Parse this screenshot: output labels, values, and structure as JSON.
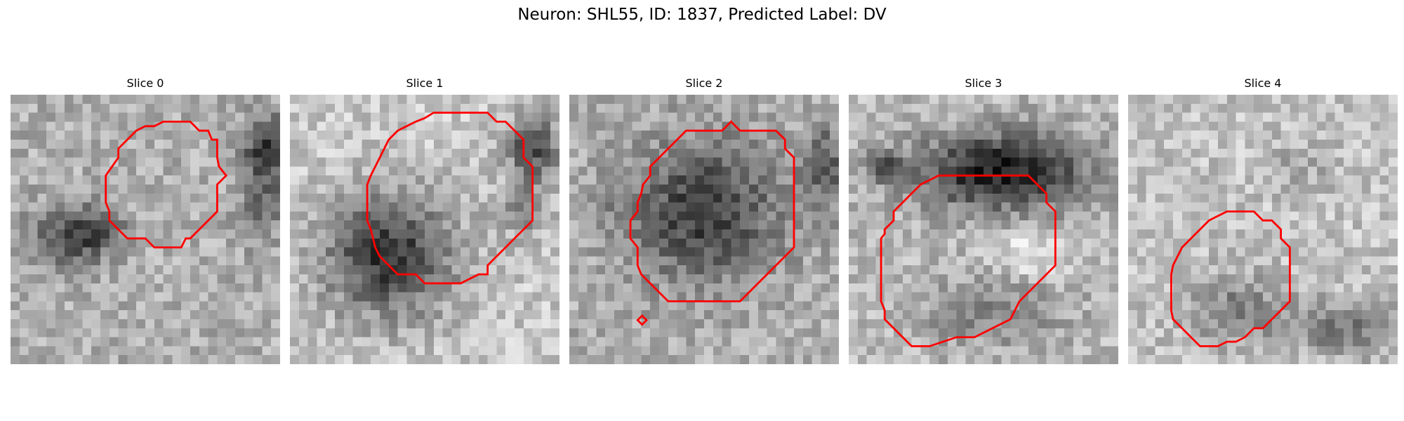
{
  "suptitle": "Neuron: SHL55, ID: 1837, Predicted Label: DV",
  "contour_color": "#ff0000",
  "panels": [
    {
      "title": "Slice 0"
    },
    {
      "title": "Slice 1"
    },
    {
      "title": "Slice 2"
    },
    {
      "title": "Slice 3"
    },
    {
      "title": "Slice 4"
    }
  ]
}
